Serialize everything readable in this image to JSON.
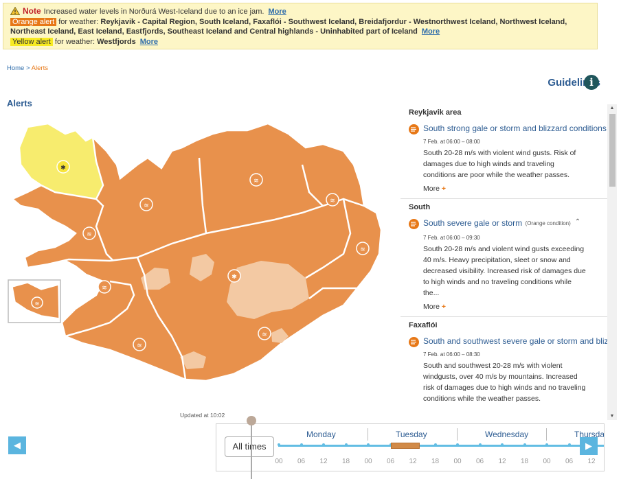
{
  "banner": {
    "note_label": "Note",
    "note_text": "Increased water levels in Norðurá West-Iceland due to an ice jam.",
    "more": "More",
    "orange_tag": "Orange alert",
    "orange_prefix": "for weather:",
    "orange_areas_line1": "Reykjavik - Capital Region, South Iceland, Faxaflói - Southwest Iceland, Breidafjordur - Westnorthwest Iceland, Northwest Iceland,",
    "orange_areas_line2": "Northeast Iceland, East Iceland, Eastfjords, Southeast Iceland and Central highlands - Uninhabited part of Iceland",
    "yellow_tag": "Yellow alert",
    "yellow_prefix": "for weather:",
    "yellow_areas": "Westfjords"
  },
  "breadcrumb": {
    "home": "Home",
    "sep": ">",
    "current": "Alerts"
  },
  "guidelines": "Guidelines",
  "info_glyph": "i",
  "page_title": "Alerts",
  "updated": "Updated at 10:02",
  "colors": {
    "orange": "#e8914c",
    "yellow": "#f7ec6e",
    "glacier": "#f3c9a3",
    "accent": "#2d5c92",
    "timeline": "#62bde3"
  },
  "panel": {
    "sections": [
      {
        "area": "Reykjavik area",
        "title": "South strong gale or storm and blizzard conditions",
        "subtitle": "",
        "time": "7 Feb. at 06:00 – 08:00",
        "desc": "South 20-28 m/s with violent wind gusts. Risk of damages due to high winds and traveling conditions are poor while the weather passes.",
        "more": "More"
      },
      {
        "area": "South",
        "title": "South severe gale or storm",
        "subtitle": "(Orange condition)",
        "time": "7 Feb. at 06:00 – 09:30",
        "desc": "South 20-28 m/s and violent wind gusts exceeding 40 m/s. Heavy precipitation, sleet or snow and decreased visibility. Increased risk of damages due to high winds and no traveling conditions while the...",
        "more": "More"
      },
      {
        "area": "Faxaflói",
        "title": "South and southwest severe gale or storm and blizzard",
        "subtitle": "",
        "time": "7 Feb. at 06:00 – 08:30",
        "desc": "South and southwest 20-28 m/s with violent windgusts, over 40 m/s by mountains. Increased risk of damages due to high winds and no traveling conditions while the weather passes.",
        "more": "More"
      }
    ]
  },
  "timeline": {
    "all_times": "All times",
    "days": [
      "Monday",
      "Tuesday",
      "Wednesday",
      "Thursday"
    ],
    "hours": [
      "00",
      "06",
      "12",
      "18",
      "00",
      "06",
      "12",
      "18",
      "00",
      "06",
      "12",
      "18",
      "00",
      "06",
      "12"
    ]
  },
  "icons": {
    "warning": "warning-triangle-icon",
    "info": "info-icon",
    "alert": "wind-snow-icon",
    "prev": "arrow-left-icon",
    "next": "arrow-right-icon"
  },
  "nav_glyphs": {
    "prev": "◀",
    "next": "▶",
    "chevron_down": "⌃",
    "chevron_up": "⌃",
    "scroll_up": "▲",
    "scroll_down": "▼"
  }
}
